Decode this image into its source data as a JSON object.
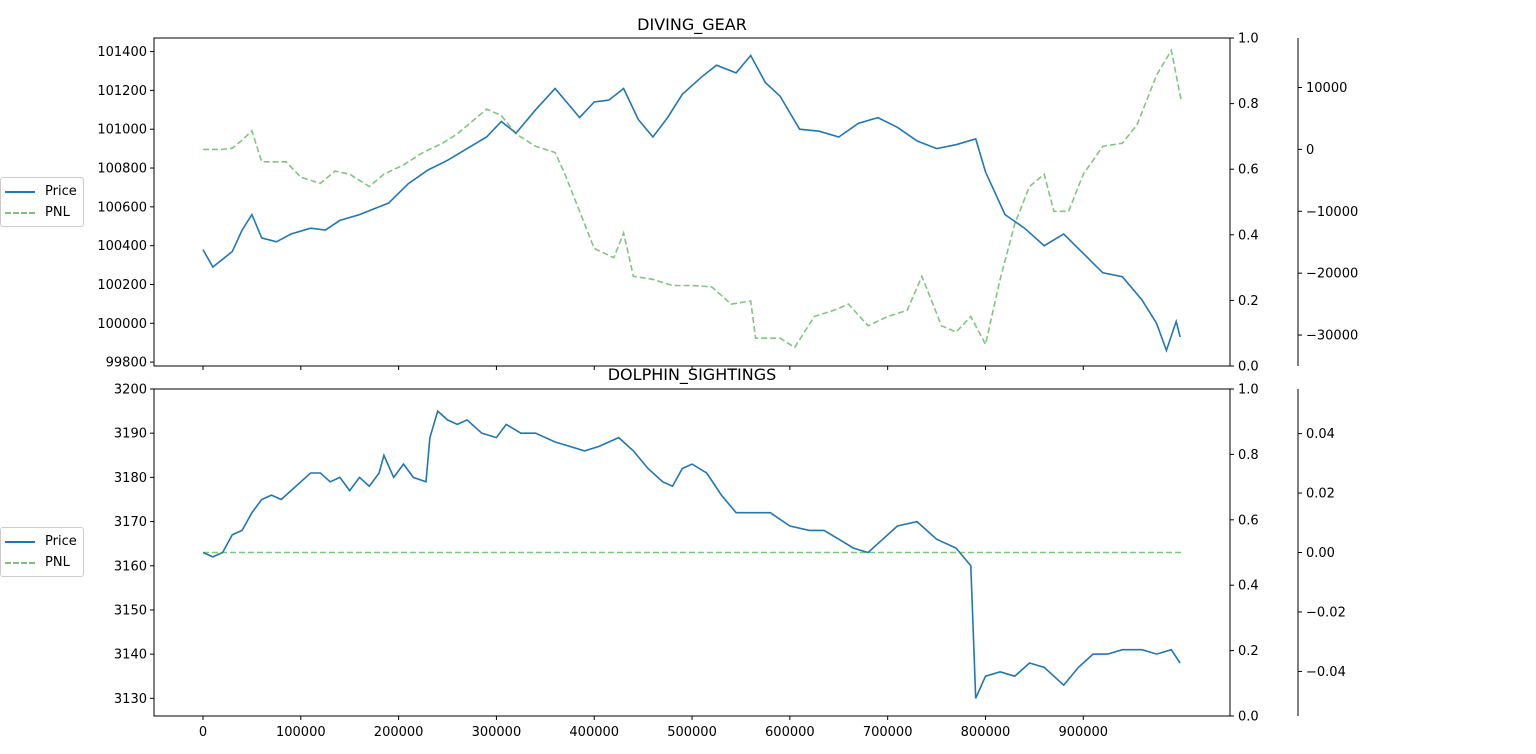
{
  "chart_data": [
    {
      "type": "line",
      "title": "DIVING_GEAR",
      "x_range": [
        0,
        999900
      ],
      "x_ticks": [
        "0",
        "100000",
        "200000",
        "300000",
        "400000",
        "500000",
        "600000",
        "700000",
        "800000",
        "900000"
      ],
      "y_left_ticks": [
        "99800",
        "100000",
        "100200",
        "100400",
        "100600",
        "100800",
        "101000",
        "101200",
        "101400"
      ],
      "y_left_range": [
        99780,
        101470
      ],
      "y_mid_ticks": [
        "0.0",
        "0.2",
        "0.4",
        "0.6",
        "0.8",
        "1.0"
      ],
      "y_mid_range": [
        0,
        1
      ],
      "y_right_ticks": [
        "−30000",
        "−20000",
        "−10000",
        "0",
        "10000"
      ],
      "y_right_range": [
        -35000,
        18000
      ],
      "legend": [
        "Price",
        "PNL"
      ],
      "legend_placement": "left of plot",
      "series": [
        {
          "name": "Price",
          "axis": "left",
          "color": "#1f77b4",
          "style": "solid",
          "points": [
            [
              0,
              100380
            ],
            [
              10000,
              100290
            ],
            [
              20000,
              100330
            ],
            [
              30000,
              100370
            ],
            [
              40000,
              100480
            ],
            [
              50000,
              100560
            ],
            [
              60000,
              100440
            ],
            [
              75000,
              100420
            ],
            [
              90000,
              100460
            ],
            [
              110000,
              100490
            ],
            [
              125000,
              100480
            ],
            [
              140000,
              100530
            ],
            [
              160000,
              100560
            ],
            [
              175000,
              100590
            ],
            [
              190000,
              100620
            ],
            [
              210000,
              100720
            ],
            [
              230000,
              100790
            ],
            [
              250000,
              100840
            ],
            [
              270000,
              100900
            ],
            [
              290000,
              100960
            ],
            [
              305000,
              101040
            ],
            [
              320000,
              100980
            ],
            [
              340000,
              101100
            ],
            [
              360000,
              101210
            ],
            [
              375000,
              101120
            ],
            [
              385000,
              101060
            ],
            [
              400000,
              101140
            ],
            [
              415000,
              101150
            ],
            [
              430000,
              101210
            ],
            [
              445000,
              101050
            ],
            [
              460000,
              100960
            ],
            [
              475000,
              101060
            ],
            [
              490000,
              101180
            ],
            [
              510000,
              101270
            ],
            [
              525000,
              101330
            ],
            [
              545000,
              101290
            ],
            [
              560000,
              101380
            ],
            [
              575000,
              101240
            ],
            [
              590000,
              101170
            ],
            [
              610000,
              101000
            ],
            [
              630000,
              100990
            ],
            [
              650000,
              100960
            ],
            [
              670000,
              101030
            ],
            [
              690000,
              101060
            ],
            [
              710000,
              101010
            ],
            [
              730000,
              100940
            ],
            [
              750000,
              100900
            ],
            [
              770000,
              100920
            ],
            [
              790000,
              100950
            ],
            [
              800000,
              100780
            ],
            [
              820000,
              100560
            ],
            [
              840000,
              100490
            ],
            [
              860000,
              100400
            ],
            [
              880000,
              100460
            ],
            [
              900000,
              100360
            ],
            [
              920000,
              100260
            ],
            [
              940000,
              100240
            ],
            [
              960000,
              100120
            ],
            [
              975000,
              100000
            ],
            [
              985000,
              99860
            ],
            [
              995000,
              100010
            ],
            [
              999000,
              99930
            ]
          ]
        },
        {
          "name": "PNL",
          "axis": "right",
          "color": "#2ca02c",
          "style": "dashed",
          "points": [
            [
              0,
              0
            ],
            [
              20000,
              0
            ],
            [
              30000,
              200
            ],
            [
              40000,
              1500
            ],
            [
              50000,
              3000
            ],
            [
              60000,
              -2000
            ],
            [
              85000,
              -2000
            ],
            [
              100000,
              -4500
            ],
            [
              120000,
              -5500
            ],
            [
              135000,
              -3500
            ],
            [
              150000,
              -4000
            ],
            [
              170000,
              -6000
            ],
            [
              185000,
              -4000
            ],
            [
              205000,
              -2500
            ],
            [
              225000,
              -500
            ],
            [
              245000,
              1000
            ],
            [
              260000,
              2500
            ],
            [
              275000,
              4500
            ],
            [
              290000,
              6500
            ],
            [
              305000,
              5500
            ],
            [
              320000,
              2500
            ],
            [
              340000,
              500
            ],
            [
              360000,
              -500
            ],
            [
              370000,
              -4000
            ],
            [
              385000,
              -10000
            ],
            [
              400000,
              -16000
            ],
            [
              420000,
              -17500
            ],
            [
              430000,
              -13500
            ],
            [
              440000,
              -20500
            ],
            [
              460000,
              -21000
            ],
            [
              480000,
              -22000
            ],
            [
              500000,
              -22000
            ],
            [
              520000,
              -22200
            ],
            [
              540000,
              -25000
            ],
            [
              560000,
              -24500
            ],
            [
              565000,
              -30500
            ],
            [
              590000,
              -30500
            ],
            [
              605000,
              -32000
            ],
            [
              625000,
              -27000
            ],
            [
              645000,
              -26000
            ],
            [
              660000,
              -25000
            ],
            [
              680000,
              -28500
            ],
            [
              700000,
              -27000
            ],
            [
              720000,
              -26000
            ],
            [
              735000,
              -20500
            ],
            [
              755000,
              -28500
            ],
            [
              770000,
              -29500
            ],
            [
              785000,
              -27000
            ],
            [
              800000,
              -31500
            ],
            [
              815000,
              -21000
            ],
            [
              830000,
              -12000
            ],
            [
              845000,
              -6000
            ],
            [
              860000,
              -4000
            ],
            [
              870000,
              -10000
            ],
            [
              885000,
              -10000
            ],
            [
              900000,
              -4000
            ],
            [
              920000,
              500
            ],
            [
              940000,
              1000
            ],
            [
              955000,
              4000
            ],
            [
              975000,
              12000
            ],
            [
              990000,
              16000
            ],
            [
              1000000,
              8000
            ]
          ]
        }
      ]
    },
    {
      "type": "line",
      "title": "DOLPHIN_SIGHTINGS",
      "x_range": [
        0,
        999900
      ],
      "x_ticks": [
        "0",
        "100000",
        "200000",
        "300000",
        "400000",
        "500000",
        "600000",
        "700000",
        "800000",
        "900000"
      ],
      "y_left_ticks": [
        "3130",
        "3140",
        "3150",
        "3160",
        "3170",
        "3180",
        "3190",
        "3200"
      ],
      "y_left_range": [
        3126,
        3200
      ],
      "y_mid_ticks": [
        "0.0",
        "0.2",
        "0.4",
        "0.6",
        "0.8",
        "1.0"
      ],
      "y_mid_range": [
        0,
        1
      ],
      "y_right_ticks": [
        "−0.04",
        "−0.02",
        "0.00",
        "0.02",
        "0.04"
      ],
      "y_right_range": [
        -0.055,
        0.055
      ],
      "legend": [
        "Price",
        "PNL"
      ],
      "legend_placement": "left of plot",
      "series": [
        {
          "name": "Price",
          "axis": "left",
          "color": "#1f77b4",
          "style": "solid",
          "points": [
            [
              0,
              3163
            ],
            [
              10000,
              3162
            ],
            [
              20000,
              3163
            ],
            [
              30000,
              3167
            ],
            [
              40000,
              3168
            ],
            [
              50000,
              3172
            ],
            [
              60000,
              3175
            ],
            [
              70000,
              3176
            ],
            [
              80000,
              3175
            ],
            [
              90000,
              3177
            ],
            [
              100000,
              3179
            ],
            [
              110000,
              3181
            ],
            [
              120000,
              3181
            ],
            [
              130000,
              3179
            ],
            [
              140000,
              3180
            ],
            [
              150000,
              3177
            ],
            [
              160000,
              3180
            ],
            [
              170000,
              3178
            ],
            [
              180000,
              3181
            ],
            [
              185000,
              3185
            ],
            [
              195000,
              3180
            ],
            [
              205000,
              3183
            ],
            [
              215000,
              3180
            ],
            [
              228000,
              3179
            ],
            [
              232000,
              3189
            ],
            [
              240000,
              3195
            ],
            [
              250000,
              3193
            ],
            [
              260000,
              3192
            ],
            [
              270000,
              3193
            ],
            [
              285000,
              3190
            ],
            [
              300000,
              3189
            ],
            [
              310000,
              3192
            ],
            [
              325000,
              3190
            ],
            [
              340000,
              3190
            ],
            [
              360000,
              3188
            ],
            [
              375000,
              3187
            ],
            [
              390000,
              3186
            ],
            [
              405000,
              3187
            ],
            [
              425000,
              3189
            ],
            [
              440000,
              3186
            ],
            [
              455000,
              3182
            ],
            [
              470000,
              3179
            ],
            [
              480000,
              3178
            ],
            [
              490000,
              3182
            ],
            [
              500000,
              3183
            ],
            [
              515000,
              3181
            ],
            [
              530000,
              3176
            ],
            [
              545000,
              3172
            ],
            [
              565000,
              3172
            ],
            [
              580000,
              3172
            ],
            [
              600000,
              3169
            ],
            [
              620000,
              3168
            ],
            [
              635000,
              3168
            ],
            [
              650000,
              3166
            ],
            [
              665000,
              3164
            ],
            [
              680000,
              3163
            ],
            [
              695000,
              3166
            ],
            [
              710000,
              3169
            ],
            [
              730000,
              3170
            ],
            [
              750000,
              3166
            ],
            [
              770000,
              3164
            ],
            [
              785000,
              3160
            ],
            [
              790000,
              3130
            ],
            [
              800000,
              3135
            ],
            [
              815000,
              3136
            ],
            [
              830000,
              3135
            ],
            [
              845000,
              3138
            ],
            [
              860000,
              3137
            ],
            [
              870000,
              3135
            ],
            [
              880000,
              3133
            ],
            [
              895000,
              3137
            ],
            [
              910000,
              3140
            ],
            [
              925000,
              3140
            ],
            [
              940000,
              3141
            ],
            [
              960000,
              3141
            ],
            [
              975000,
              3140
            ],
            [
              990000,
              3141
            ],
            [
              999000,
              3138
            ]
          ]
        },
        {
          "name": "PNL",
          "axis": "right",
          "color": "#2ca02c",
          "style": "dashed",
          "points": [
            [
              0,
              0
            ],
            [
              1000000,
              0
            ]
          ]
        }
      ]
    }
  ]
}
